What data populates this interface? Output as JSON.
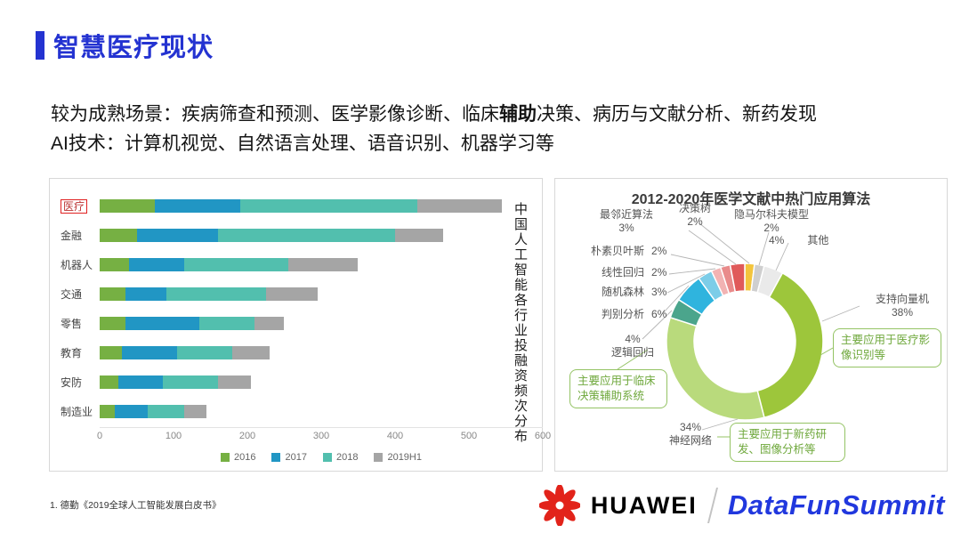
{
  "header": {
    "title": "智慧医疗现状"
  },
  "body": {
    "line1_pre": "较为成熟场景：疾病筛查和预测、医学影像诊断、临床",
    "line1_bold": "辅助",
    "line1_post": "决策、病历与文献分析、新药发现",
    "line2": "AI技术：计算机视觉、自然语言处理、语音识别、机器学习等"
  },
  "footnote": "1. 德勤《2019全球人工智能发展白皮书》",
  "brand": {
    "huawei": "HUAWEI",
    "summit": "DataFunSummit"
  },
  "colors": {
    "accent_blue": "#2433D1",
    "huawei_red": "#E2231A",
    "callout_green": "#94C364",
    "highlight_red": "#E02020"
  },
  "chart_data": [
    {
      "type": "bar",
      "orientation": "horizontal",
      "stacked": true,
      "title": "中国人工智能各行业投融资频次分布",
      "categories": [
        "医疗",
        "金融",
        "机器人",
        "交通",
        "零售",
        "教育",
        "安防",
        "制造业"
      ],
      "highlight": "医疗",
      "series": [
        {
          "name": "2016",
          "color": "#76B043",
          "values": [
            75,
            50,
            40,
            35,
            35,
            30,
            25,
            20
          ]
        },
        {
          "name": "2017",
          "color": "#2196C4",
          "values": [
            115,
            110,
            75,
            55,
            100,
            75,
            60,
            45
          ]
        },
        {
          "name": "2018",
          "color": "#52BFAE",
          "values": [
            240,
            240,
            140,
            135,
            75,
            75,
            75,
            50
          ]
        },
        {
          "name": "2019H1",
          "color": "#A5A5A5",
          "values": [
            115,
            65,
            95,
            70,
            40,
            50,
            45,
            30
          ]
        }
      ],
      "xlim": [
        0,
        600
      ],
      "xticks": [
        0,
        100,
        200,
        300,
        400,
        500,
        600
      ],
      "grid": false,
      "legend_position": "bottom"
    },
    {
      "type": "pie",
      "subtype": "donut",
      "title": "2012-2020年医学文献中热门应用算法",
      "order": "clockwise-from-top",
      "slices": [
        {
          "label": "决策树",
          "value": 2,
          "pct": "2%",
          "color": "#F3C53D"
        },
        {
          "label": "隐马尔科夫模型",
          "value": 2,
          "pct": "2%",
          "color": "#CFCFCF"
        },
        {
          "label": "其他",
          "value": 4,
          "pct": "4%",
          "color": "#EAEAEA"
        },
        {
          "label": "支持向量机",
          "value": 38,
          "pct": "38%",
          "color": "#9DC63B"
        },
        {
          "label": "神经网络",
          "value": 34,
          "pct": "34%",
          "color": "#B9DA7C"
        },
        {
          "label": "逻辑回归",
          "value": 4,
          "pct": "4%",
          "color": "#4BA58C"
        },
        {
          "label": "判别分析",
          "value": 6,
          "pct": "6%",
          "color": "#2FB4DE"
        },
        {
          "label": "随机森林",
          "value": 3,
          "pct": "3%",
          "color": "#7CCDE8"
        },
        {
          "label": "线性回归",
          "value": 2,
          "pct": "2%",
          "color": "#F2B3B3"
        },
        {
          "label": "朴素贝叶斯",
          "value": 2,
          "pct": "2%",
          "color": "#E98B8B"
        },
        {
          "label": "最邻近算法",
          "value": 3,
          "pct": "3%",
          "color": "#E05A5A"
        }
      ],
      "callouts": [
        "主要应用于医疗影像识别等",
        "主要应用于临床决策辅助系统",
        "主要应用于新药研发、图像分析等"
      ]
    }
  ]
}
